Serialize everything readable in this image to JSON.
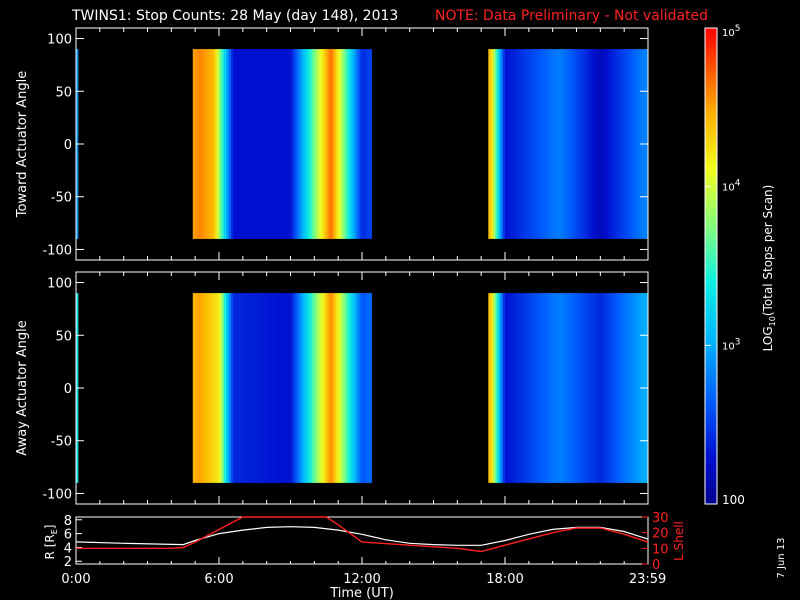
{
  "header": {
    "title": "TWINS1: Stop Counts: 28 May (day 148), 2013",
    "note": "NOTE: Data Preliminary - Not validated"
  },
  "colorbar": {
    "label": "LOG10(Total Stops per Scan)",
    "label_main": "LOG",
    "label_sub": "10",
    "label_rest": "(Total Stops per Scan)",
    "ticks": [
      {
        "value": 100000,
        "base": "10",
        "exp": "5"
      },
      {
        "value": 10000,
        "base": "10",
        "exp": "4"
      },
      {
        "value": 1000,
        "base": "10",
        "exp": "3"
      },
      {
        "value": 100,
        "base": "100",
        "exp": ""
      }
    ],
    "range": [
      100,
      100000
    ],
    "scale": "log"
  },
  "footer": {
    "date_stamp": "7 Jun 13"
  },
  "colors": {
    "background": "#000000",
    "note": "#ff2020",
    "lshell": "#ff2020",
    "r_line": "#ffffff"
  },
  "chart_data": [
    {
      "type": "heatmap",
      "ylabel": "Toward Actuator Angle",
      "ylim": [
        -110,
        110
      ],
      "yticks": [
        "100",
        "50",
        "0",
        "-50",
        "-100"
      ],
      "xlim": [
        "0:00",
        "23:59"
      ],
      "data_coverage_hours": [
        [
          0,
          0.08
        ],
        [
          4.9,
          12.4
        ],
        [
          17.3,
          24.0
        ]
      ],
      "approx_level_by_hour": [
        {
          "hour": 0.05,
          "log10": 2.9
        },
        {
          "hour": 5.2,
          "log10": 4.6
        },
        {
          "hour": 5.8,
          "log10": 4.4
        },
        {
          "hour": 6.6,
          "log10": 2.3
        },
        {
          "hour": 9.0,
          "log10": 2.3
        },
        {
          "hour": 10.7,
          "log10": 4.7
        },
        {
          "hour": 12.0,
          "log10": 2.4
        },
        {
          "hour": 17.4,
          "log10": 4.4
        },
        {
          "hour": 18.0,
          "log10": 2.3
        },
        {
          "hour": 20.3,
          "log10": 2.8
        },
        {
          "hour": 22.0,
          "log10": 2.2
        },
        {
          "hour": 23.8,
          "log10": 2.8
        }
      ]
    },
    {
      "type": "heatmap",
      "ylabel": "Away Actuator Angle",
      "ylim": [
        -110,
        110
      ],
      "yticks": [
        "100",
        "50",
        "0",
        "-50",
        "-100"
      ],
      "xlim": [
        "0:00",
        "23:59"
      ],
      "data_coverage_hours": [
        [
          0,
          0.08
        ],
        [
          4.9,
          12.4
        ],
        [
          17.3,
          24.0
        ]
      ],
      "approx_level_by_hour": [
        {
          "hour": 0.05,
          "log10": 3.3
        },
        {
          "hour": 5.2,
          "log10": 4.5
        },
        {
          "hour": 6.0,
          "log10": 4.2
        },
        {
          "hour": 6.6,
          "log10": 2.4
        },
        {
          "hour": 9.0,
          "log10": 2.3
        },
        {
          "hour": 10.7,
          "log10": 4.6
        },
        {
          "hour": 12.0,
          "log10": 2.6
        },
        {
          "hour": 17.4,
          "log10": 4.4
        },
        {
          "hour": 18.0,
          "log10": 2.3
        },
        {
          "hour": 20.3,
          "log10": 2.8
        },
        {
          "hour": 22.0,
          "log10": 2.4
        },
        {
          "hour": 23.8,
          "log10": 3.0
        }
      ]
    },
    {
      "type": "line",
      "xlabel": "Time (UT)",
      "xticks": [
        "0:00",
        "6:00",
        "12:00",
        "18:00",
        "23:59"
      ],
      "ylabel_left": "R [RE]",
      "ylabel_left_main": "R [R",
      "ylabel_left_sub": "E",
      "ylabel_left_end": "]",
      "ylabel_right": "L Shell",
      "yticks_left": [
        "2",
        "4",
        "6",
        "8"
      ],
      "yticks_right": [
        "0",
        "10",
        "20",
        "30"
      ],
      "ylim_left": [
        1.6,
        8.4
      ],
      "ylim_right": [
        0,
        30
      ],
      "series": [
        {
          "axis": "left",
          "color": "#ffffff",
          "x_hours": [
            0,
            2,
            4.5,
            5,
            6,
            7,
            8,
            9,
            10,
            11,
            12,
            13,
            14,
            15,
            16,
            17,
            18,
            19,
            20,
            21,
            22,
            23,
            24
          ],
          "y": [
            4.8,
            4.6,
            4.4,
            5.0,
            6.0,
            6.5,
            6.9,
            7.0,
            6.9,
            6.5,
            5.9,
            5.1,
            4.6,
            4.4,
            4.3,
            4.3,
            5.0,
            5.9,
            6.6,
            6.9,
            6.9,
            6.3,
            5.2
          ]
        },
        {
          "axis": "right",
          "color": "#ff2020",
          "x_hours": [
            0,
            1,
            2,
            3,
            4,
            4.5,
            5,
            6,
            7,
            10.5,
            11,
            12,
            13,
            14,
            15,
            16,
            17,
            18,
            19,
            20,
            21,
            22,
            23,
            24
          ],
          "y": [
            10,
            10,
            10,
            10,
            10,
            10.5,
            14,
            22,
            30,
            30,
            25,
            14,
            13,
            12,
            11,
            10,
            8,
            12,
            16,
            20,
            23,
            23,
            19,
            14
          ]
        }
      ]
    }
  ]
}
